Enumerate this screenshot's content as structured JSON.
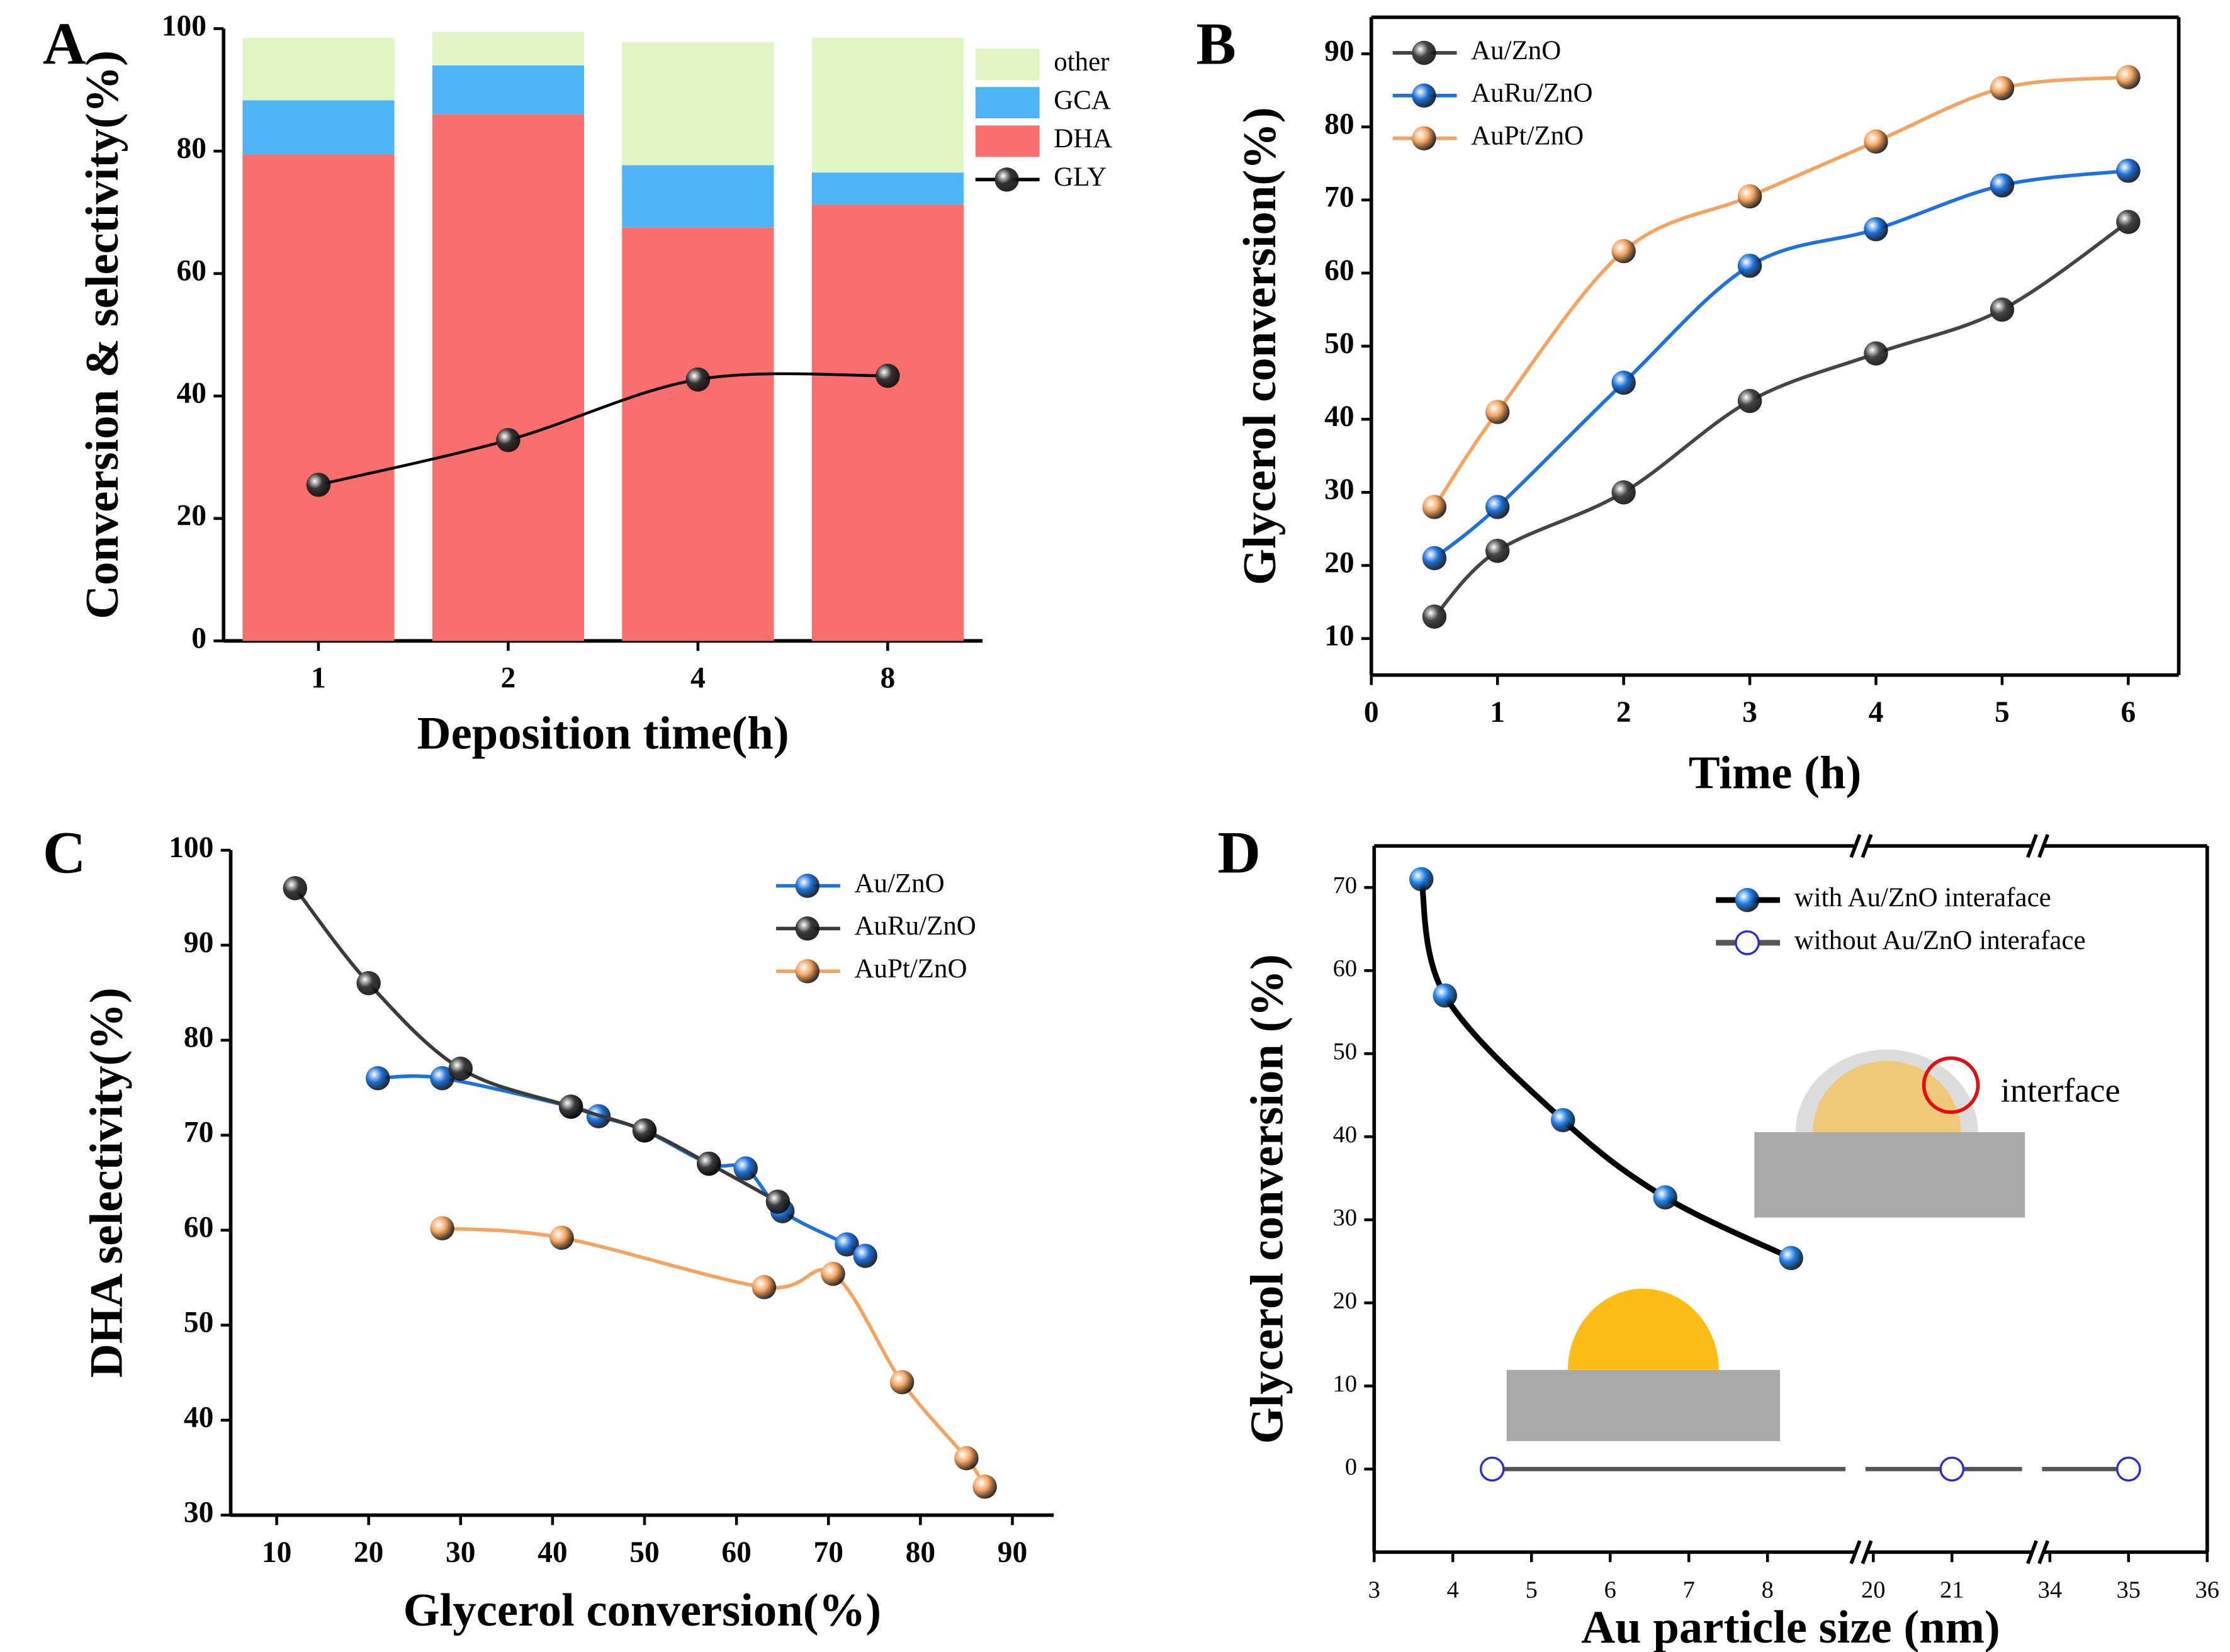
{
  "chart_data": [
    {
      "type": "bar",
      "label": "A",
      "xlabel": "Deposition time(h)",
      "ylabel": "Conversion & selectivity(%)",
      "categories": [
        "1",
        "2",
        "4",
        "8"
      ],
      "series": [
        {
          "name": "DHA",
          "color": "#fa6e6e",
          "values": [
            79.5,
            86,
            67.5,
            71.3
          ]
        },
        {
          "name": "GCA",
          "color": "#4db5f5",
          "values": [
            8.8,
            8,
            10.2,
            5.2
          ]
        },
        {
          "name": "other",
          "color": "#e1f5c4",
          "values": [
            10.2,
            5.5,
            20.1,
            22
          ]
        },
        {
          "name": "GLY",
          "type": "line",
          "color": "#000000",
          "values": [
            25.5,
            32.8,
            42.7,
            43.3
          ]
        }
      ],
      "ylim": [
        0,
        100
      ],
      "yticks": [
        0,
        20,
        40,
        60,
        80,
        100
      ],
      "legend": "upper right"
    },
    {
      "type": "line",
      "label": "B",
      "xlabel": "Time (h)",
      "ylabel": "Glycerol conversion(%)",
      "series": [
        {
          "name": "Au/ZnO",
          "color": "#454545",
          "x": [
            0.5,
            1,
            2,
            3,
            4,
            5,
            6
          ],
          "values": [
            13,
            22,
            30,
            42.5,
            49,
            55,
            67
          ]
        },
        {
          "name": "AuRu/ZnO",
          "color": "#1f72dc",
          "x": [
            0.5,
            1,
            2,
            3,
            4,
            5,
            6
          ],
          "values": [
            21,
            28,
            45,
            61,
            66,
            72,
            74
          ]
        },
        {
          "name": "AuPt/ZnO",
          "color": "#f4a460",
          "x": [
            0.5,
            1,
            2,
            3,
            4,
            5,
            6
          ],
          "values": [
            28,
            41,
            63,
            70.5,
            78,
            85.3,
            86.8
          ]
        }
      ],
      "xlim": [
        0,
        6.4
      ],
      "xticks": [
        0,
        1,
        2,
        3,
        4,
        5,
        6
      ],
      "ylim": [
        5,
        95
      ],
      "yticks": [
        10,
        20,
        30,
        40,
        50,
        60,
        70,
        80,
        90
      ],
      "legend": "upper left"
    },
    {
      "type": "line",
      "label": "C",
      "xlabel": "Glycerol conversion(%)",
      "ylabel": "DHA selectivity(%)",
      "series": [
        {
          "name": "Au/ZnO",
          "color": "#1f72dc",
          "x": [
            21,
            28,
            42,
            45,
            50,
            57,
            61,
            65,
            72,
            74
          ],
          "values": [
            76,
            76,
            73,
            72,
            70.5,
            67,
            66.5,
            62,
            58.5,
            57.3
          ]
        },
        {
          "name": "AuRu/ZnO",
          "color": "#3a3a3a",
          "x": [
            12,
            20,
            30,
            42,
            50,
            57,
            64.5
          ],
          "values": [
            96,
            86,
            77,
            73,
            70.5,
            67,
            63
          ]
        },
        {
          "name": "AuPt/ZnO",
          "color": "#f4a460",
          "x": [
            28,
            41,
            63,
            70.5,
            78,
            85,
            87
          ],
          "values": [
            60.2,
            59.2,
            54,
            55.4,
            44,
            36,
            33
          ]
        }
      ],
      "xlim": [
        5,
        94.5
      ],
      "xticks": [
        10,
        20,
        30,
        40,
        50,
        60,
        70,
        80,
        90
      ],
      "ylim": [
        30,
        100
      ],
      "yticks": [
        30,
        40,
        50,
        60,
        70,
        80,
        90,
        100
      ],
      "legend": "upper right"
    },
    {
      "type": "line",
      "label": "D",
      "xlabel": "Au particle size (nm)",
      "ylabel": "Glycerol conversion (%)",
      "series": [
        {
          "name": "with Au/ZnO interaface",
          "color": "#000000",
          "marker_color": "#1f7fe6",
          "x": [
            3.6,
            3.9,
            5.4,
            6.7,
            8.3
          ],
          "values": [
            71,
            57,
            42,
            32.7,
            25.4
          ]
        },
        {
          "name": "without Au/ZnO interaface",
          "color": "#555555",
          "marker_color": "#2b2bd9",
          "marker": "hollow",
          "x": [
            4.5,
            21,
            35
          ],
          "values": [
            0,
            0,
            0
          ]
        }
      ],
      "xsegments": [
        [
          3,
          9.1
        ],
        [
          19.9,
          22
        ],
        [
          33.9,
          36
        ]
      ],
      "xticks": [
        3,
        4,
        5,
        6,
        7,
        8,
        20,
        21,
        34,
        35,
        36
      ],
      "ylim": [
        -10,
        75
      ],
      "yticks": [
        0,
        10,
        20,
        30,
        40,
        50,
        60,
        70
      ],
      "legend": "upper right",
      "annotations": [
        "interface"
      ]
    }
  ]
}
